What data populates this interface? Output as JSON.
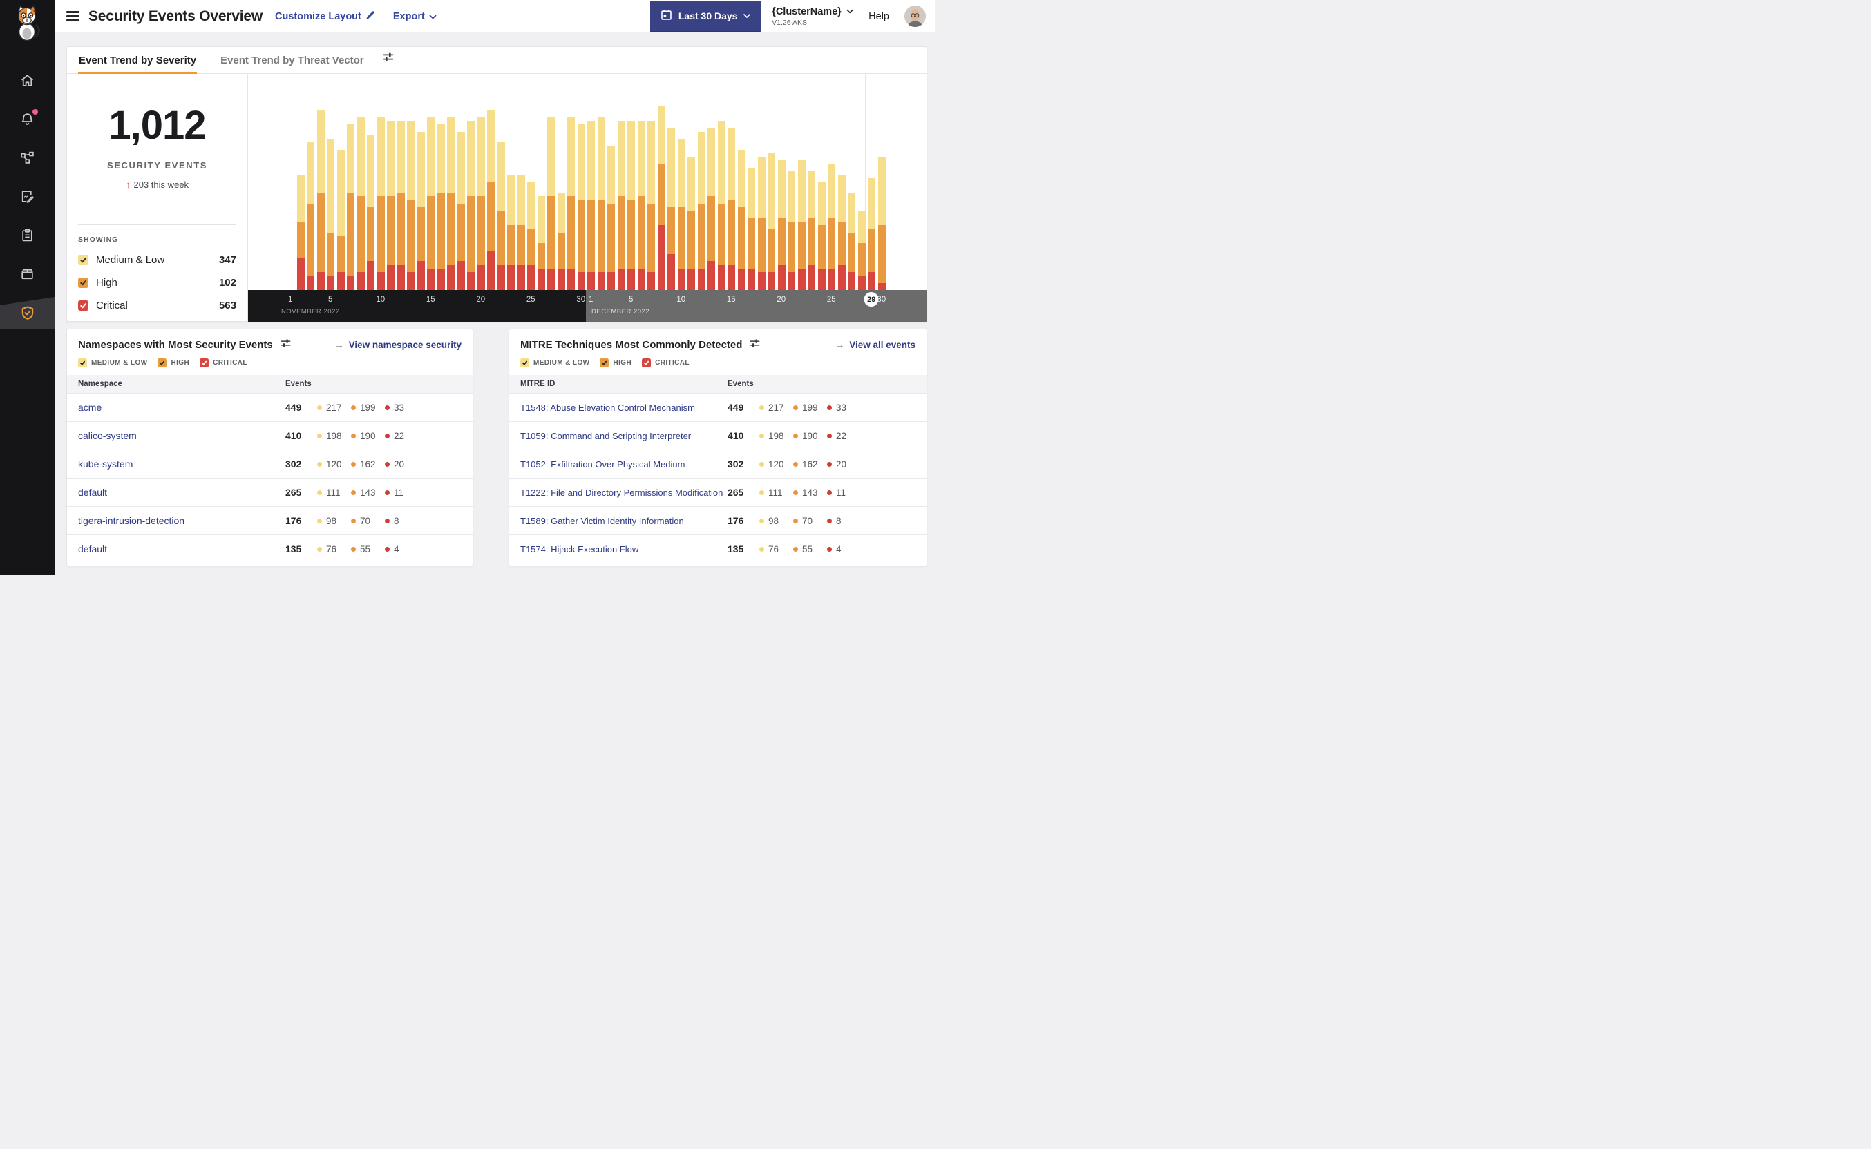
{
  "header": {
    "title": "Security Events Overview",
    "customize_layout_label": "Customize Layout",
    "export_label": "Export",
    "date_range_label": "Last 30 Days",
    "cluster_name": "{ClusterName}",
    "cluster_version": "V1.26 AKS",
    "help_label": "Help"
  },
  "sidebar": {
    "items": [
      {
        "id": "home"
      },
      {
        "id": "alerts",
        "badge": "notification-dot"
      },
      {
        "id": "service-graph"
      },
      {
        "id": "policies"
      },
      {
        "id": "compliance"
      },
      {
        "id": "workloads"
      },
      {
        "id": "security-events",
        "active": true
      }
    ]
  },
  "tabs": {
    "severity_label": "Event Trend by Severity",
    "threat_vector_label": "Event Trend by Threat Vector"
  },
  "stat": {
    "total": "1,012",
    "label": "SECURITY EVENTS",
    "delta_arrow": "↑",
    "delta_text": "203 this week",
    "showing_label": "SHOWING",
    "rows": [
      {
        "label": "Medium & Low",
        "count": "347",
        "color": "#F6DE8A"
      },
      {
        "label": "High",
        "count": "102",
        "color": "#E89B3D"
      },
      {
        "label": "Critical",
        "count": "563",
        "color": "#D8463D"
      }
    ]
  },
  "severities": {
    "medium_low": {
      "label": "MEDIUM & LOW",
      "color": "#F6DE8A"
    },
    "high": {
      "label": "HIGH",
      "color": "#E89B3D"
    },
    "critical": {
      "label": "CRITICAL",
      "color": "#D8463D"
    }
  },
  "chart_data": {
    "type": "bar",
    "subtype": "stacked-daily",
    "title": "Event Trend by Severity",
    "series_names": [
      "Medium & Low",
      "High",
      "Critical"
    ],
    "colors": {
      "ml": "#F6DE8A",
      "hi": "#EA9A3E",
      "cr": "#D8463D"
    },
    "x_axis": {
      "months": [
        {
          "key": "NOV",
          "label": "NOVEMBER 2022",
          "ticks": [
            1,
            5,
            10,
            15,
            20,
            25,
            30
          ]
        },
        {
          "key": "DEC",
          "label": "DECEMBER 2022",
          "ticks": [
            1,
            5,
            10,
            15,
            20,
            25,
            30
          ]
        }
      ],
      "highlighted_day": {
        "month": "DEC",
        "day": 29
      }
    },
    "days": [
      {
        "m": "NOV",
        "d": 2,
        "ml": 13,
        "hi": 10,
        "cr": 9
      },
      {
        "m": "NOV",
        "d": 3,
        "ml": 17,
        "hi": 20,
        "cr": 4
      },
      {
        "m": "NOV",
        "d": 4,
        "ml": 23,
        "hi": 22,
        "cr": 5
      },
      {
        "m": "NOV",
        "d": 5,
        "ml": 26,
        "hi": 12,
        "cr": 4
      },
      {
        "m": "NOV",
        "d": 6,
        "ml": 24,
        "hi": 10,
        "cr": 5
      },
      {
        "m": "NOV",
        "d": 7,
        "ml": 19,
        "hi": 23,
        "cr": 4
      },
      {
        "m": "NOV",
        "d": 8,
        "ml": 22,
        "hi": 21,
        "cr": 5
      },
      {
        "m": "NOV",
        "d": 9,
        "ml": 20,
        "hi": 15,
        "cr": 8
      },
      {
        "m": "NOV",
        "d": 10,
        "ml": 22,
        "hi": 21,
        "cr": 5
      },
      {
        "m": "NOV",
        "d": 11,
        "ml": 21,
        "hi": 19,
        "cr": 7
      },
      {
        "m": "NOV",
        "d": 12,
        "ml": 20,
        "hi": 20,
        "cr": 7
      },
      {
        "m": "NOV",
        "d": 13,
        "ml": 22,
        "hi": 20,
        "cr": 5
      },
      {
        "m": "NOV",
        "d": 14,
        "ml": 21,
        "hi": 15,
        "cr": 8
      },
      {
        "m": "NOV",
        "d": 15,
        "ml": 22,
        "hi": 20,
        "cr": 6
      },
      {
        "m": "NOV",
        "d": 16,
        "ml": 19,
        "hi": 21,
        "cr": 6
      },
      {
        "m": "NOV",
        "d": 17,
        "ml": 21,
        "hi": 20,
        "cr": 7
      },
      {
        "m": "NOV",
        "d": 18,
        "ml": 20,
        "hi": 16,
        "cr": 8
      },
      {
        "m": "NOV",
        "d": 19,
        "ml": 21,
        "hi": 21,
        "cr": 5
      },
      {
        "m": "NOV",
        "d": 20,
        "ml": 22,
        "hi": 19,
        "cr": 7
      },
      {
        "m": "NOV",
        "d": 21,
        "ml": 20,
        "hi": 19,
        "cr": 11
      },
      {
        "m": "NOV",
        "d": 22,
        "ml": 19,
        "hi": 15,
        "cr": 7
      },
      {
        "m": "NOV",
        "d": 23,
        "ml": 14,
        "hi": 11,
        "cr": 7
      },
      {
        "m": "NOV",
        "d": 24,
        "ml": 14,
        "hi": 11,
        "cr": 7
      },
      {
        "m": "NOV",
        "d": 25,
        "ml": 13,
        "hi": 10,
        "cr": 7
      },
      {
        "m": "NOV",
        "d": 26,
        "ml": 13,
        "hi": 7,
        "cr": 6
      },
      {
        "m": "NOV",
        "d": 27,
        "ml": 22,
        "hi": 20,
        "cr": 6
      },
      {
        "m": "NOV",
        "d": 28,
        "ml": 11,
        "hi": 10,
        "cr": 6
      },
      {
        "m": "NOV",
        "d": 29,
        "ml": 22,
        "hi": 20,
        "cr": 6
      },
      {
        "m": "NOV",
        "d": 30,
        "ml": 21,
        "hi": 20,
        "cr": 5
      },
      {
        "m": "DEC",
        "d": 1,
        "ml": 22,
        "hi": 20,
        "cr": 5
      },
      {
        "m": "DEC",
        "d": 2,
        "ml": 23,
        "hi": 20,
        "cr": 5
      },
      {
        "m": "DEC",
        "d": 3,
        "ml": 16,
        "hi": 19,
        "cr": 5
      },
      {
        "m": "DEC",
        "d": 4,
        "ml": 21,
        "hi": 20,
        "cr": 6
      },
      {
        "m": "DEC",
        "d": 5,
        "ml": 22,
        "hi": 19,
        "cr": 6
      },
      {
        "m": "DEC",
        "d": 6,
        "ml": 21,
        "hi": 20,
        "cr": 6
      },
      {
        "m": "DEC",
        "d": 7,
        "ml": 23,
        "hi": 19,
        "cr": 5
      },
      {
        "m": "DEC",
        "d": 8,
        "ml": 16,
        "hi": 17,
        "cr": 18
      },
      {
        "m": "DEC",
        "d": 9,
        "ml": 22,
        "hi": 13,
        "cr": 10
      },
      {
        "m": "DEC",
        "d": 10,
        "ml": 19,
        "hi": 17,
        "cr": 6
      },
      {
        "m": "DEC",
        "d": 11,
        "ml": 15,
        "hi": 16,
        "cr": 6
      },
      {
        "m": "DEC",
        "d": 12,
        "ml": 20,
        "hi": 18,
        "cr": 6
      },
      {
        "m": "DEC",
        "d": 13,
        "ml": 19,
        "hi": 18,
        "cr": 8
      },
      {
        "m": "DEC",
        "d": 14,
        "ml": 23,
        "hi": 17,
        "cr": 7
      },
      {
        "m": "DEC",
        "d": 15,
        "ml": 20,
        "hi": 18,
        "cr": 7
      },
      {
        "m": "DEC",
        "d": 16,
        "ml": 16,
        "hi": 17,
        "cr": 6
      },
      {
        "m": "DEC",
        "d": 17,
        "ml": 14,
        "hi": 14,
        "cr": 6
      },
      {
        "m": "DEC",
        "d": 18,
        "ml": 17,
        "hi": 15,
        "cr": 5
      },
      {
        "m": "DEC",
        "d": 19,
        "ml": 21,
        "hi": 12,
        "cr": 5
      },
      {
        "m": "DEC",
        "d": 20,
        "ml": 16,
        "hi": 13,
        "cr": 7
      },
      {
        "m": "DEC",
        "d": 21,
        "ml": 14,
        "hi": 14,
        "cr": 5
      },
      {
        "m": "DEC",
        "d": 22,
        "ml": 17,
        "hi": 13,
        "cr": 6
      },
      {
        "m": "DEC",
        "d": 23,
        "ml": 13,
        "hi": 13,
        "cr": 7
      },
      {
        "m": "DEC",
        "d": 24,
        "ml": 12,
        "hi": 12,
        "cr": 6
      },
      {
        "m": "DEC",
        "d": 25,
        "ml": 15,
        "hi": 14,
        "cr": 6
      },
      {
        "m": "DEC",
        "d": 26,
        "ml": 13,
        "hi": 12,
        "cr": 7
      },
      {
        "m": "DEC",
        "d": 27,
        "ml": 11,
        "hi": 11,
        "cr": 5
      },
      {
        "m": "DEC",
        "d": 28,
        "ml": 9,
        "hi": 9,
        "cr": 4
      },
      {
        "m": "DEC",
        "d": 29,
        "ml": 14,
        "hi": 12,
        "cr": 5
      },
      {
        "m": "DEC",
        "d": 30,
        "ml": 19,
        "hi": 16,
        "cr": 2
      }
    ]
  },
  "namespaces": {
    "title": "Namespaces with Most Security Events",
    "view_link_arrow": "→",
    "view_link": "View namespace security",
    "col_name": "Namespace",
    "col_events": "Events",
    "rows": [
      {
        "name": "acme",
        "total": "449",
        "ml": "217",
        "hi": "199",
        "cr": "33"
      },
      {
        "name": "calico-system",
        "total": "410",
        "ml": "198",
        "hi": "190",
        "cr": "22"
      },
      {
        "name": "kube-system",
        "total": "302",
        "ml": "120",
        "hi": "162",
        "cr": "20"
      },
      {
        "name": "default",
        "total": "265",
        "ml": "111",
        "hi": "143",
        "cr": "11"
      },
      {
        "name": "tigera-intrusion-detection",
        "total": "176",
        "ml": "98",
        "hi": "70",
        "cr": "8"
      },
      {
        "name": "default",
        "total": "135",
        "ml": "76",
        "hi": "55",
        "cr": "4"
      }
    ]
  },
  "mitre": {
    "title": "MITRE Techniques Most Commonly Detected",
    "view_link_arrow": "→",
    "view_link": "View all events",
    "col_name": "MITRE ID",
    "col_events": "Events",
    "rows": [
      {
        "name": "T1548: Abuse Elevation Control Mechanism",
        "total": "449",
        "ml": "217",
        "hi": "199",
        "cr": "33"
      },
      {
        "name": "T1059: Command and Scripting Interpreter",
        "total": "410",
        "ml": "198",
        "hi": "190",
        "cr": "22"
      },
      {
        "name": "T1052: Exfiltration Over Physical Medium",
        "total": "302",
        "ml": "120",
        "hi": "162",
        "cr": "20"
      },
      {
        "name": "T1222: File and Directory Permissions Modification",
        "total": "265",
        "ml": "111",
        "hi": "143",
        "cr": "11"
      },
      {
        "name": "T1589: Gather Victim Identity Information",
        "total": "176",
        "ml": "98",
        "hi": "70",
        "cr": "8"
      },
      {
        "name": "T1574: Hijack Execution Flow",
        "total": "135",
        "ml": "76",
        "hi": "55",
        "cr": "4"
      }
    ]
  }
}
